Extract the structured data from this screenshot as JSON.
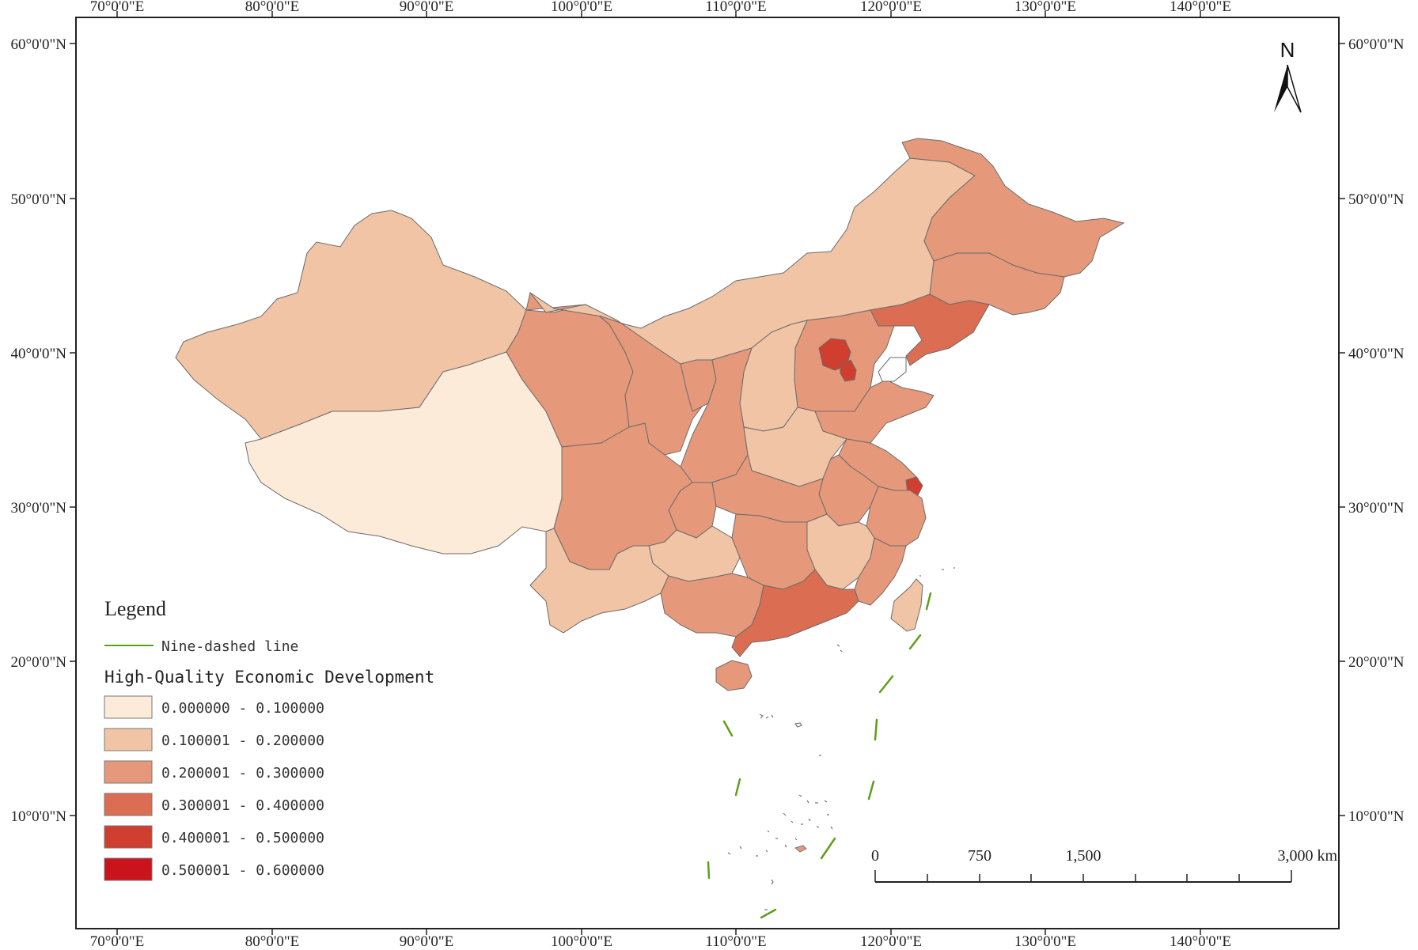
{
  "colors": {
    "class_0": "#fdebd9",
    "class_1": "#f1c4a5",
    "class_2": "#e6997a",
    "class_3": "#db6e52",
    "class_4": "#d03e2f",
    "class_5": "#c8141a",
    "nine_dash": "#5f9e1c",
    "frame": "#222222"
  },
  "graticule": {
    "top_labels": [
      "70°0'0\"E",
      "80°0'0\"E",
      "90°0'0\"E",
      "100°0'0\"E",
      "110°0'0\"E",
      "120°0'0\"E",
      "130°0'0\"E",
      "140°0'0\"E"
    ],
    "bottom_labels": [
      "70°0'0\"E",
      "80°0'0\"E",
      "90°0'0\"E",
      "100°0'0\"E",
      "110°0'0\"E",
      "120°0'0\"E",
      "130°0'0\"E",
      "140°0'0\"E"
    ],
    "left_labels": [
      "60°0'0\"N",
      "50°0'0\"N",
      "40°0'0\"N",
      "30°0'0\"N",
      "20°0'0\"N",
      "10°0'0\"N"
    ],
    "right_labels": [
      "60°0'0\"N",
      "50°0'0\"N",
      "40°0'0\"N",
      "30°0'0\"N",
      "20°0'0\"N",
      "10°0'0\"N"
    ]
  },
  "north_arrow": {
    "label": "N",
    "icon": "north-arrow-icon"
  },
  "scale_bar": {
    "labels": [
      "0",
      "750",
      "1,500",
      "3,000 km"
    ]
  },
  "legend": {
    "title": "Legend",
    "line_label": "Nine-dashed line",
    "field_title": "High-Quality Economic Development",
    "classes": [
      {
        "range": "0.000000 - 0.100000",
        "color": "#fdebd9"
      },
      {
        "range": "0.100001 - 0.200000",
        "color": "#f1c4a5"
      },
      {
        "range": "0.200001 - 0.300000",
        "color": "#e6997a"
      },
      {
        "range": "0.300001 - 0.400000",
        "color": "#db6e52"
      },
      {
        "range": "0.400001 - 0.500000",
        "color": "#d03e2f"
      },
      {
        "range": "0.500001 - 0.600000",
        "color": "#c8141a"
      }
    ]
  },
  "regions": [
    {
      "name": "Xinjiang",
      "class": 1
    },
    {
      "name": "Tibet",
      "class": 0
    },
    {
      "name": "Qinghai",
      "class": 2
    },
    {
      "name": "Gansu",
      "class": 2
    },
    {
      "name": "Inner Mongolia",
      "class": 1
    },
    {
      "name": "Heilongjiang",
      "class": 2
    },
    {
      "name": "Jilin",
      "class": 2
    },
    {
      "name": "Liaoning",
      "class": 3
    },
    {
      "name": "Beijing",
      "class": 4
    },
    {
      "name": "Tianjin",
      "class": 4
    },
    {
      "name": "Hebei",
      "class": 2
    },
    {
      "name": "Shanxi",
      "class": 1
    },
    {
      "name": "Shaanxi",
      "class": 2
    },
    {
      "name": "Ningxia",
      "class": 2
    },
    {
      "name": "Shandong",
      "class": 2
    },
    {
      "name": "Henan",
      "class": 1
    },
    {
      "name": "Jiangsu",
      "class": 2
    },
    {
      "name": "Shanghai",
      "class": 4
    },
    {
      "name": "Anhui",
      "class": 2
    },
    {
      "name": "Zhejiang",
      "class": 2
    },
    {
      "name": "Hubei",
      "class": 2
    },
    {
      "name": "Sichuan",
      "class": 2
    },
    {
      "name": "Chongqing",
      "class": 2
    },
    {
      "name": "Yunnan",
      "class": 1
    },
    {
      "name": "Guizhou",
      "class": 1
    },
    {
      "name": "Hunan",
      "class": 2
    },
    {
      "name": "Jiangxi",
      "class": 1
    },
    {
      "name": "Fujian",
      "class": 2
    },
    {
      "name": "Guangxi",
      "class": 2
    },
    {
      "name": "Guangdong",
      "class": 3
    },
    {
      "name": "Hainan",
      "class": 2
    },
    {
      "name": "Taiwan",
      "class": 1
    }
  ]
}
